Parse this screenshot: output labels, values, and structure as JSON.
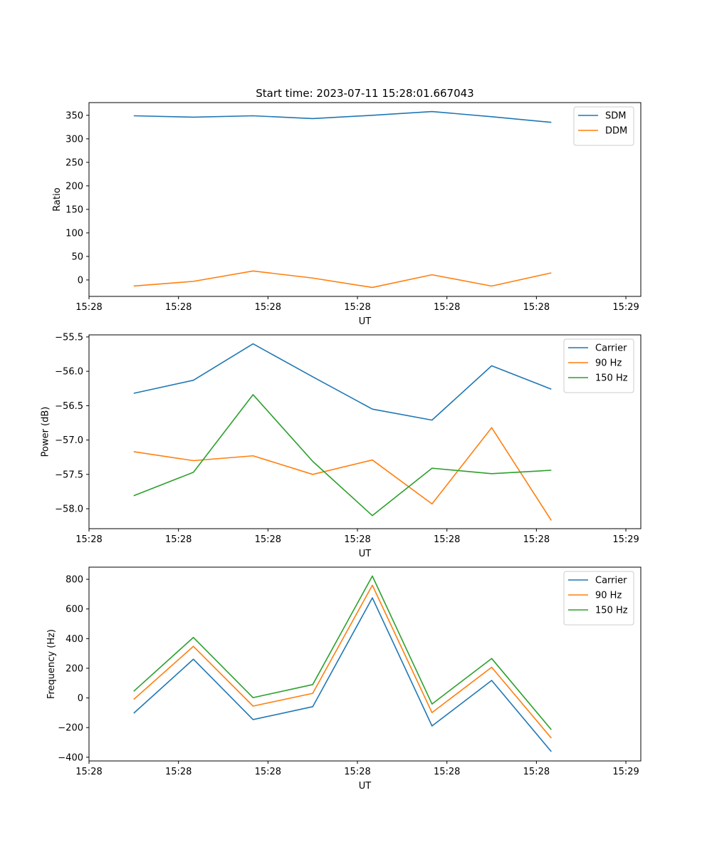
{
  "title": "Start time: 2023-07-11 15:28:01.667043",
  "colors": {
    "c0": "#1f77b4",
    "c1": "#ff7f0e",
    "c2": "#2ca02c"
  },
  "chart_data": [
    {
      "type": "line",
      "xlabel": "UT",
      "ylabel": "Ratio",
      "x": [
        0,
        1,
        2,
        3,
        4,
        5,
        6,
        7
      ],
      "xlim": [
        -0.75,
        8.5
      ],
      "xticks": [
        -0.75,
        0.75,
        2.25,
        3.75,
        5.25,
        6.75,
        8.25
      ],
      "xtick_labels": [
        "15:28",
        "15:28",
        "15:28",
        "15:28",
        "15:28",
        "15:28",
        "15:29"
      ],
      "ylim": [
        -35,
        377
      ],
      "yticks": [
        0,
        50,
        100,
        150,
        200,
        250,
        300,
        350
      ],
      "ytick_labels": [
        "0",
        "50",
        "100",
        "150",
        "200",
        "250",
        "300",
        "350"
      ],
      "legend": "top-right",
      "series": [
        {
          "name": "SDM",
          "color_key": "c0",
          "values": [
            349,
            346,
            349,
            343,
            350,
            358,
            347,
            335
          ]
        },
        {
          "name": "DDM",
          "color_key": "c1",
          "values": [
            -13,
            -3,
            19,
            4,
            -16,
            11,
            -13,
            15
          ]
        }
      ]
    },
    {
      "type": "line",
      "xlabel": "UT",
      "ylabel": "Power (dB)",
      "x": [
        0,
        1,
        2,
        3,
        4,
        5,
        6,
        7
      ],
      "xlim": [
        -0.75,
        8.5
      ],
      "xticks": [
        -0.75,
        0.75,
        2.25,
        3.75,
        5.25,
        6.75,
        8.25
      ],
      "xtick_labels": [
        "15:28",
        "15:28",
        "15:28",
        "15:28",
        "15:28",
        "15:28",
        "15:29"
      ],
      "ylim": [
        -58.29,
        -55.47
      ],
      "yticks": [
        -58.0,
        -57.5,
        -57.0,
        -56.5,
        -56.0,
        -55.5
      ],
      "ytick_labels": [
        "−58.0",
        "−57.5",
        "−57.0",
        "−56.5",
        "−56.0",
        "−55.5"
      ],
      "legend": "top-right",
      "series": [
        {
          "name": "Carrier",
          "color_key": "c0",
          "values": [
            -56.32,
            -56.13,
            -55.6,
            -56.08,
            -56.55,
            -56.71,
            -55.92,
            -56.26
          ]
        },
        {
          "name": "90 Hz",
          "color_key": "c1",
          "values": [
            -57.17,
            -57.3,
            -57.23,
            -57.5,
            -57.29,
            -57.93,
            -56.82,
            -58.17
          ]
        },
        {
          "name": "150 Hz",
          "color_key": "c2",
          "values": [
            -57.81,
            -57.47,
            -56.34,
            -57.31,
            -58.1,
            -57.41,
            -57.49,
            -57.44
          ]
        }
      ]
    },
    {
      "type": "line",
      "xlabel": "UT",
      "ylabel": "Frequency (Hz)",
      "x": [
        0,
        1,
        2,
        3,
        4,
        5,
        6,
        7
      ],
      "xlim": [
        -0.75,
        8.5
      ],
      "xticks": [
        -0.75,
        0.75,
        2.25,
        3.75,
        5.25,
        6.75,
        8.25
      ],
      "xtick_labels": [
        "15:28",
        "15:28",
        "15:28",
        "15:28",
        "15:28",
        "15:28",
        "15:29"
      ],
      "ylim": [
        -425,
        882
      ],
      "yticks": [
        -400,
        -200,
        0,
        200,
        400,
        600,
        800
      ],
      "ytick_labels": [
        "−400",
        "−200",
        "0",
        "200",
        "400",
        "600",
        "800"
      ],
      "legend": "top-right",
      "series": [
        {
          "name": "Carrier",
          "color_key": "c0",
          "values": [
            -103,
            261,
            -146,
            -59,
            675,
            -189,
            118,
            -362
          ]
        },
        {
          "name": "90 Hz",
          "color_key": "c1",
          "values": [
            -10,
            348,
            -55,
            31,
            760,
            -99,
            207,
            -271
          ]
        },
        {
          "name": "150 Hz",
          "color_key": "c2",
          "values": [
            45,
            408,
            2,
            90,
            822,
            -41,
            266,
            -214
          ]
        }
      ]
    }
  ]
}
